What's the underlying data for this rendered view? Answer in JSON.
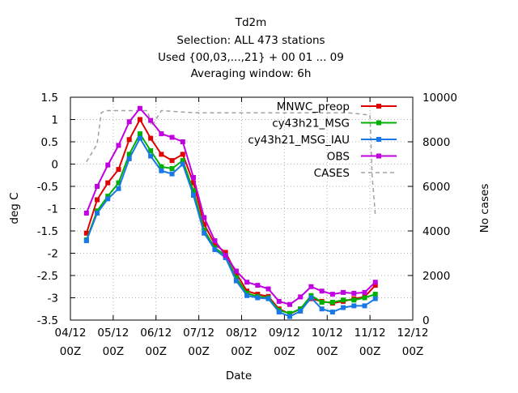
{
  "chart_data": {
    "type": "line",
    "title_lines": [
      "Td2m",
      "Selection: ALL    473 stations",
      "Used {00,03,...,21} + 00 01 ... 09",
      "Averaging window:  6h"
    ],
    "xlabel": "Date",
    "ylabel": "deg C",
    "y2label": "No cases",
    "xlim": [
      0,
      8
    ],
    "ylim": [
      -3.5,
      1.5
    ],
    "y2lim": [
      0,
      10000
    ],
    "x_ticks": [
      {
        "v": 0,
        "l1": "04/12",
        "l2": "00Z"
      },
      {
        "v": 1,
        "l1": "05/12",
        "l2": "00Z"
      },
      {
        "v": 2,
        "l1": "06/12",
        "l2": "00Z"
      },
      {
        "v": 3,
        "l1": "07/12",
        "l2": "00Z"
      },
      {
        "v": 4,
        "l1": "08/12",
        "l2": "00Z"
      },
      {
        "v": 5,
        "l1": "09/12",
        "l2": "00Z"
      },
      {
        "v": 6,
        "l1": "10/12",
        "l2": "00Z"
      },
      {
        "v": 7,
        "l1": "11/12",
        "l2": "00Z"
      },
      {
        "v": 8,
        "l1": "12/12",
        "l2": "00Z"
      }
    ],
    "y_ticks": [
      {
        "v": 1.5,
        "l": "1.5"
      },
      {
        "v": 1,
        "l": "1"
      },
      {
        "v": 0.5,
        "l": "0.5"
      },
      {
        "v": 0,
        "l": "0"
      },
      {
        "v": -0.5,
        "l": "-0.5"
      },
      {
        "v": -1,
        "l": "-1"
      },
      {
        "v": -1.5,
        "l": "-1.5"
      },
      {
        "v": -2,
        "l": "-2"
      },
      {
        "v": -2.5,
        "l": "-2.5"
      },
      {
        "v": -3,
        "l": "-3"
      },
      {
        "v": -3.5,
        "l": "-3.5"
      }
    ],
    "y2_ticks": [
      {
        "v": 0,
        "l": "0"
      },
      {
        "v": 2000,
        "l": "2000"
      },
      {
        "v": 4000,
        "l": "4000"
      },
      {
        "v": 6000,
        "l": "6000"
      },
      {
        "v": 8000,
        "l": "8000"
      },
      {
        "v": 10000,
        "l": "10000"
      }
    ],
    "grid": true,
    "legend_position": "top-right",
    "x": [
      0.375,
      0.625,
      0.875,
      1.125,
      1.375,
      1.625,
      1.875,
      2.125,
      2.375,
      2.625,
      2.875,
      3.125,
      3.375,
      3.625,
      3.875,
      4.125,
      4.375,
      4.625,
      4.875,
      5.125,
      5.375,
      5.625,
      5.875,
      6.125,
      6.375,
      6.625,
      6.875,
      7.125
    ],
    "series": [
      {
        "name": "MNWC_preop",
        "color": "#e00000",
        "values": [
          -1.55,
          -0.8,
          -0.42,
          -0.12,
          0.55,
          1.0,
          0.58,
          0.22,
          0.08,
          0.22,
          -0.42,
          -1.35,
          -1.8,
          -1.98,
          -2.45,
          -2.85,
          -2.92,
          -2.97,
          -3.25,
          -3.36,
          -3.25,
          -3.02,
          -3.08,
          -3.12,
          -3.08,
          -3.02,
          -2.98,
          -2.72
        ]
      },
      {
        "name": "cy43h21_MSG",
        "color": "#00b000",
        "values": [
          -1.7,
          -1.05,
          -0.72,
          -0.42,
          0.22,
          0.68,
          0.3,
          -0.06,
          -0.1,
          0.08,
          -0.6,
          -1.48,
          -1.88,
          -2.05,
          -2.55,
          -2.9,
          -2.97,
          -3.0,
          -3.28,
          -3.35,
          -3.25,
          -2.95,
          -3.1,
          -3.1,
          -3.05,
          -3.05,
          -3.0,
          -2.92
        ]
      },
      {
        "name": "cy43h21_MSG_IAU",
        "color": "#1a78e6",
        "values": [
          -1.72,
          -1.1,
          -0.78,
          -0.55,
          0.12,
          0.58,
          0.18,
          -0.15,
          -0.22,
          0.0,
          -0.7,
          -1.55,
          -1.92,
          -2.1,
          -2.62,
          -2.95,
          -3.0,
          -3.02,
          -3.32,
          -3.42,
          -3.3,
          -3.0,
          -3.25,
          -3.32,
          -3.22,
          -3.18,
          -3.18,
          -3.02
        ]
      },
      {
        "name": "OBS",
        "color": "#c000e0",
        "values": [
          -1.1,
          -0.5,
          -0.02,
          0.42,
          0.95,
          1.25,
          0.98,
          0.68,
          0.6,
          0.5,
          -0.3,
          -1.2,
          -1.72,
          -2.05,
          -2.4,
          -2.65,
          -2.72,
          -2.8,
          -3.08,
          -3.15,
          -2.98,
          -2.75,
          -2.85,
          -2.92,
          -2.88,
          -2.9,
          -2.88,
          -2.65
        ]
      }
    ],
    "cases_series": {
      "name": "CASES",
      "x": [
        0.375,
        0.625,
        0.72,
        0.82,
        1.125,
        1.375,
        1.625,
        1.8,
        1.9,
        2.125,
        2.5,
        3.0,
        3.5,
        4.0,
        4.5,
        5.0,
        5.5,
        6.0,
        6.5,
        7.0,
        7.05,
        7.125
      ],
      "values": [
        7100,
        7900,
        9300,
        9400,
        9400,
        9400,
        9400,
        9400,
        8700,
        9400,
        9350,
        9300,
        9300,
        9300,
        9300,
        9300,
        9300,
        9300,
        9300,
        9200,
        6500,
        4700
      ]
    }
  }
}
